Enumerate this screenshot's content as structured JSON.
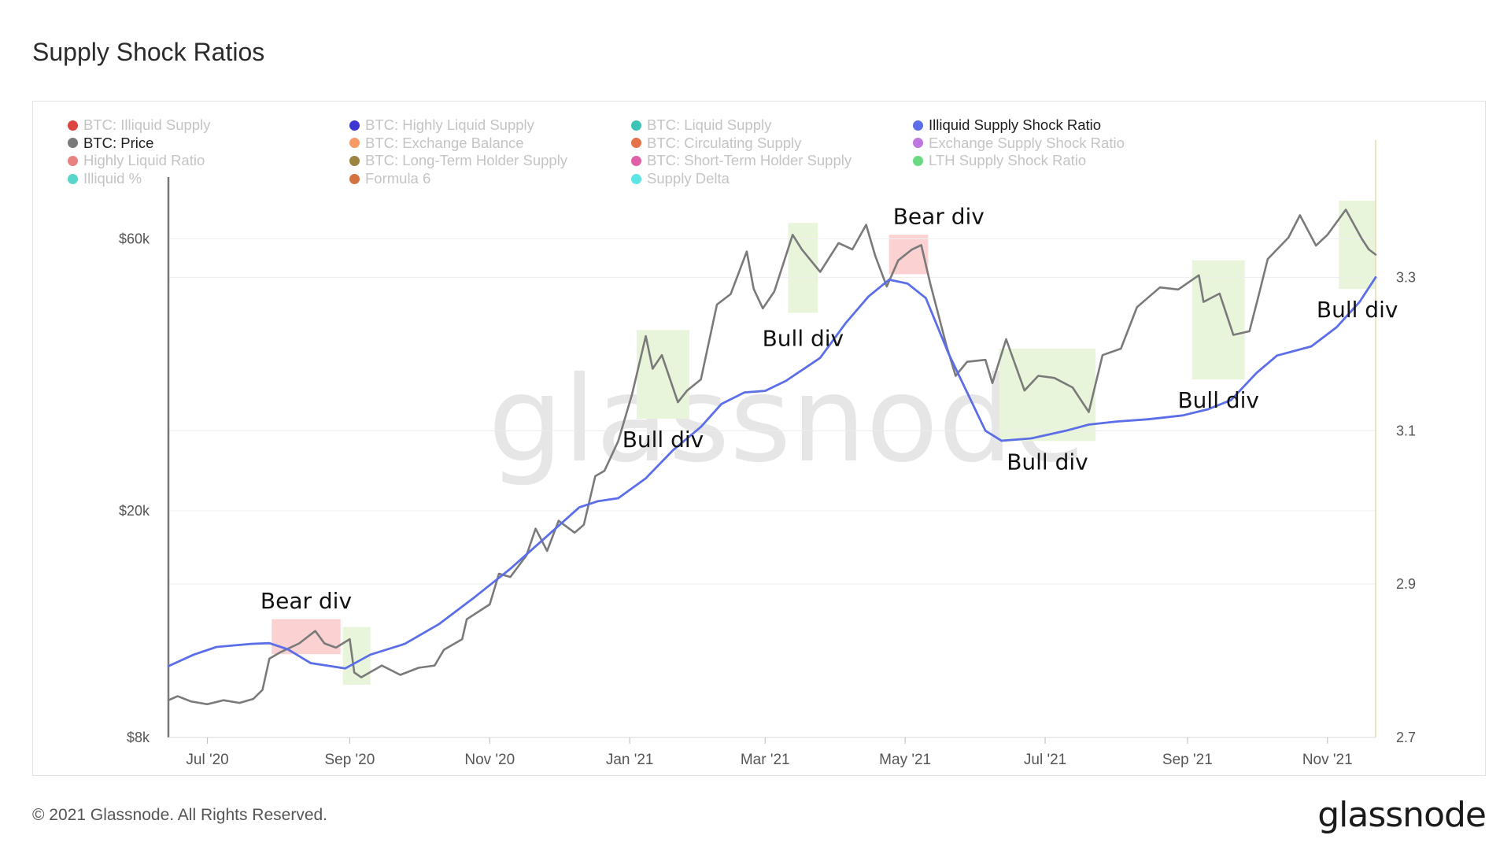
{
  "page": {
    "title": "Supply Shock Ratios",
    "copyright": "© 2021 Glassnode. All Rights Reserved.",
    "logo_text": "glassnode",
    "watermark": "glassnode"
  },
  "legend": [
    {
      "label": "BTC: Illiquid Supply",
      "color": "#d7261e",
      "active": false
    },
    {
      "label": "BTC: Highly Liquid Supply",
      "color": "#1f13c9",
      "active": false
    },
    {
      "label": "BTC: Liquid Supply",
      "color": "#1bb8a8",
      "active": false
    },
    {
      "label": "Illiquid Supply Shock Ratio",
      "color": "#5b6ee8",
      "active": true
    },
    {
      "label": "BTC: Price",
      "color": "#7a7a7a",
      "active": true
    },
    {
      "label": "BTC: Exchange Balance",
      "color": "#f4874b",
      "active": false
    },
    {
      "label": "BTC: Circulating Supply",
      "color": "#e0592a",
      "active": false
    },
    {
      "label": "Exchange Supply Shock Ratio",
      "color": "#b35fd9",
      "active": false
    },
    {
      "label": "Highly Liquid Ratio",
      "color": "#e46b6b",
      "active": false
    },
    {
      "label": "BTC: Long-Term Holder Supply",
      "color": "#8a6d1e",
      "active": false
    },
    {
      "label": "BTC: Short-Term Holder Supply",
      "color": "#d9449a",
      "active": false
    },
    {
      "label": "LTH Supply Shock Ratio",
      "color": "#4fd46a",
      "active": false
    },
    {
      "label": "Illiquid %",
      "color": "#3ccfc0",
      "active": false
    },
    {
      "label": "Formula 6",
      "color": "#cc5a1e",
      "active": false
    },
    {
      "label": "Supply Delta",
      "color": "#3fe0e0",
      "active": false
    }
  ],
  "chart_data": {
    "type": "line",
    "x_range": [
      "2020-06-14",
      "2021-11-22"
    ],
    "x_ticks": [
      {
        "date": "2020-07-01",
        "label": "Jul '20"
      },
      {
        "date": "2020-09-01",
        "label": "Sep '20"
      },
      {
        "date": "2020-11-01",
        "label": "Nov '20"
      },
      {
        "date": "2021-01-01",
        "label": "Jan '21"
      },
      {
        "date": "2021-03-01",
        "label": "Mar '21"
      },
      {
        "date": "2021-05-01",
        "label": "May '21"
      },
      {
        "date": "2021-07-01",
        "label": "Jul '21"
      },
      {
        "date": "2021-09-01",
        "label": "Sep '21"
      },
      {
        "date": "2021-11-01",
        "label": "Nov '21"
      }
    ],
    "y_left": {
      "scale": "log",
      "range": [
        8000,
        70000
      ],
      "ticks": [
        {
          "value": 8000,
          "label": "$8k"
        },
        {
          "value": 20000,
          "label": "$20k"
        },
        {
          "value": 60000,
          "label": "$60k"
        }
      ]
    },
    "y_right": {
      "scale": "linear",
      "range": [
        2.7,
        3.4
      ],
      "ticks": [
        {
          "value": 2.7,
          "label": "2.7"
        },
        {
          "value": 2.9,
          "label": "2.9"
        },
        {
          "value": 3.1,
          "label": "3.1"
        },
        {
          "value": 3.3,
          "label": "3.3"
        }
      ]
    },
    "series": [
      {
        "name": "BTC: Price",
        "axis": "left",
        "color": "#7a7a7a",
        "points": [
          [
            "2020-06-14",
            9300
          ],
          [
            "2020-06-18",
            9450
          ],
          [
            "2020-06-24",
            9250
          ],
          [
            "2020-07-01",
            9150
          ],
          [
            "2020-07-08",
            9300
          ],
          [
            "2020-07-15",
            9200
          ],
          [
            "2020-07-21",
            9350
          ],
          [
            "2020-07-25",
            9700
          ],
          [
            "2020-07-28",
            11000
          ],
          [
            "2020-08-02",
            11300
          ],
          [
            "2020-08-10",
            11700
          ],
          [
            "2020-08-17",
            12300
          ],
          [
            "2020-08-21",
            11700
          ],
          [
            "2020-08-26",
            11500
          ],
          [
            "2020-09-01",
            11900
          ],
          [
            "2020-09-03",
            10400
          ],
          [
            "2020-09-06",
            10200
          ],
          [
            "2020-09-15",
            10700
          ],
          [
            "2020-09-23",
            10300
          ],
          [
            "2020-10-01",
            10600
          ],
          [
            "2020-10-08",
            10700
          ],
          [
            "2020-10-12",
            11400
          ],
          [
            "2020-10-20",
            11900
          ],
          [
            "2020-10-22",
            12900
          ],
          [
            "2020-11-01",
            13700
          ],
          [
            "2020-11-05",
            15500
          ],
          [
            "2020-11-10",
            15300
          ],
          [
            "2020-11-17",
            16700
          ],
          [
            "2020-11-21",
            18600
          ],
          [
            "2020-11-26",
            17000
          ],
          [
            "2020-12-01",
            19200
          ],
          [
            "2020-12-08",
            18300
          ],
          [
            "2020-12-12",
            18900
          ],
          [
            "2020-12-17",
            23000
          ],
          [
            "2020-12-21",
            23500
          ],
          [
            "2020-12-27",
            26500
          ],
          [
            "2021-01-02",
            32000
          ],
          [
            "2021-01-08",
            40500
          ],
          [
            "2021-01-11",
            35500
          ],
          [
            "2021-01-15",
            37500
          ],
          [
            "2021-01-22",
            31000
          ],
          [
            "2021-01-26",
            32500
          ],
          [
            "2021-02-01",
            34000
          ],
          [
            "2021-02-08",
            46000
          ],
          [
            "2021-02-14",
            48000
          ],
          [
            "2021-02-21",
            57000
          ],
          [
            "2021-02-24",
            49000
          ],
          [
            "2021-02-28",
            45300
          ],
          [
            "2021-03-05",
            48500
          ],
          [
            "2021-03-13",
            61000
          ],
          [
            "2021-03-17",
            57500
          ],
          [
            "2021-03-25",
            52500
          ],
          [
            "2021-04-02",
            59000
          ],
          [
            "2021-04-08",
            57500
          ],
          [
            "2021-04-14",
            63500
          ],
          [
            "2021-04-18",
            56000
          ],
          [
            "2021-04-23",
            49500
          ],
          [
            "2021-04-28",
            55000
          ],
          [
            "2021-05-04",
            57500
          ],
          [
            "2021-05-08",
            58500
          ],
          [
            "2021-05-12",
            50000
          ],
          [
            "2021-05-19",
            39000
          ],
          [
            "2021-05-23",
            34500
          ],
          [
            "2021-05-28",
            36500
          ],
          [
            "2021-06-05",
            36800
          ],
          [
            "2021-06-08",
            33500
          ],
          [
            "2021-06-14",
            40000
          ],
          [
            "2021-06-22",
            32500
          ],
          [
            "2021-06-28",
            34500
          ],
          [
            "2021-07-05",
            34200
          ],
          [
            "2021-07-13",
            32900
          ],
          [
            "2021-07-20",
            29800
          ],
          [
            "2021-07-26",
            37500
          ],
          [
            "2021-08-03",
            38500
          ],
          [
            "2021-08-10",
            45500
          ],
          [
            "2021-08-14",
            47000
          ],
          [
            "2021-08-20",
            49300
          ],
          [
            "2021-08-28",
            48900
          ],
          [
            "2021-09-06",
            51800
          ],
          [
            "2021-09-08",
            46500
          ],
          [
            "2021-09-15",
            48100
          ],
          [
            "2021-09-21",
            40700
          ],
          [
            "2021-09-28",
            41300
          ],
          [
            "2021-10-02",
            47700
          ],
          [
            "2021-10-06",
            55300
          ],
          [
            "2021-10-15",
            60300
          ],
          [
            "2021-10-20",
            66000
          ],
          [
            "2021-10-27",
            58400
          ],
          [
            "2021-11-01",
            61000
          ],
          [
            "2021-11-09",
            67500
          ],
          [
            "2021-11-16",
            60000
          ],
          [
            "2021-11-19",
            57500
          ],
          [
            "2021-11-22",
            56300
          ]
        ]
      },
      {
        "name": "Illiquid Supply Shock Ratio",
        "axis": "right",
        "color": "#5b6ee8",
        "points": [
          [
            "2020-06-14",
            2.793
          ],
          [
            "2020-06-25",
            2.808
          ],
          [
            "2020-07-05",
            2.818
          ],
          [
            "2020-07-20",
            2.822
          ],
          [
            "2020-07-28",
            2.823
          ],
          [
            "2020-08-05",
            2.815
          ],
          [
            "2020-08-15",
            2.797
          ],
          [
            "2020-08-30",
            2.79
          ],
          [
            "2020-09-10",
            2.808
          ],
          [
            "2020-09-25",
            2.822
          ],
          [
            "2020-10-10",
            2.848
          ],
          [
            "2020-10-25",
            2.882
          ],
          [
            "2020-11-10",
            2.92
          ],
          [
            "2020-11-25",
            2.96
          ],
          [
            "2020-12-10",
            3.0
          ],
          [
            "2020-12-18",
            3.008
          ],
          [
            "2020-12-27",
            3.012
          ],
          [
            "2021-01-08",
            3.038
          ],
          [
            "2021-01-20",
            3.075
          ],
          [
            "2021-02-01",
            3.105
          ],
          [
            "2021-02-10",
            3.135
          ],
          [
            "2021-02-20",
            3.15
          ],
          [
            "2021-03-01",
            3.152
          ],
          [
            "2021-03-10",
            3.165
          ],
          [
            "2021-03-25",
            3.195
          ],
          [
            "2021-04-05",
            3.24
          ],
          [
            "2021-04-15",
            3.275
          ],
          [
            "2021-04-24",
            3.297
          ],
          [
            "2021-05-02",
            3.292
          ],
          [
            "2021-05-10",
            3.273
          ],
          [
            "2021-05-20",
            3.2
          ],
          [
            "2021-05-28",
            3.15
          ],
          [
            "2021-06-05",
            3.1
          ],
          [
            "2021-06-12",
            3.087
          ],
          [
            "2021-06-25",
            3.09
          ],
          [
            "2021-07-10",
            3.1
          ],
          [
            "2021-07-20",
            3.108
          ],
          [
            "2021-08-01",
            3.112
          ],
          [
            "2021-08-15",
            3.115
          ],
          [
            "2021-08-30",
            3.12
          ],
          [
            "2021-09-10",
            3.128
          ],
          [
            "2021-09-20",
            3.14
          ],
          [
            "2021-10-01",
            3.175
          ],
          [
            "2021-10-10",
            3.198
          ],
          [
            "2021-10-25",
            3.21
          ],
          [
            "2021-11-05",
            3.235
          ],
          [
            "2021-11-15",
            3.268
          ],
          [
            "2021-11-22",
            3.3
          ]
        ]
      }
    ],
    "annotations": [
      {
        "label": "Bear div",
        "type": "bear",
        "x_start": "2020-07-29",
        "x_end": "2020-08-28",
        "y_top": 12900,
        "y_bottom": 11200
      },
      {
        "label": "",
        "type": "bull",
        "x_start": "2020-08-29",
        "x_end": "2020-09-10",
        "y_top": 12500,
        "y_bottom": 9900
      },
      {
        "label": "Bull div",
        "type": "bull",
        "x_start": "2021-01-04",
        "x_end": "2021-01-27",
        "y_top": 41500,
        "y_bottom": 29000
      },
      {
        "label": "Bull div",
        "type": "bull",
        "x_start": "2021-03-11",
        "x_end": "2021-03-24",
        "y_top": 64000,
        "y_bottom": 44500
      },
      {
        "label": "Bear div",
        "type": "bear",
        "x_start": "2021-04-24",
        "x_end": "2021-05-11",
        "y_top": 61000,
        "y_bottom": 52000
      },
      {
        "label": "Bull div",
        "type": "bull",
        "x_start": "2021-06-11",
        "x_end": "2021-07-23",
        "y_top": 38500,
        "y_bottom": 26500
      },
      {
        "label": "Bull div",
        "type": "bull",
        "x_start": "2021-09-03",
        "x_end": "2021-09-26",
        "y_top": 55000,
        "y_bottom": 34000
      },
      {
        "label": "Bull div",
        "type": "bull",
        "x_start": "2021-11-06",
        "x_end": "2021-11-22",
        "y_top": 70000,
        "y_bottom": 49000
      }
    ],
    "highlight_colors": {
      "bull": "#e8f5da",
      "bear": "#fbcfcf"
    },
    "grid": true
  }
}
